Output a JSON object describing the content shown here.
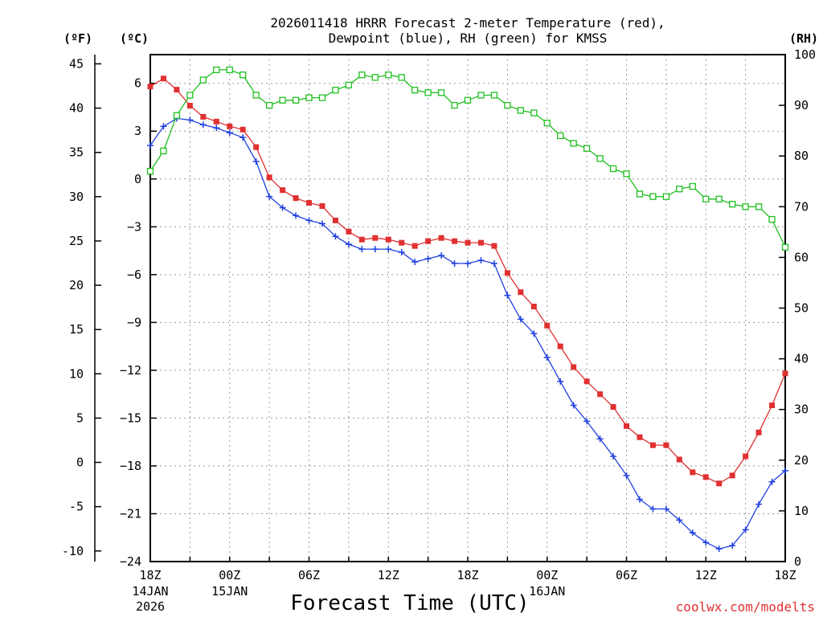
{
  "chart_data": {
    "type": "line",
    "title_line1": "2026011418 HRRR Forecast 2-meter Temperature (red),",
    "title_line2": "Dewpoint (blue), RH (green) for KMSS",
    "xlabel": "Forecast Time (UTC)",
    "credit": "coolwx.com/modelts",
    "unit_f": "(ºF)",
    "unit_c": "(ºC)",
    "unit_rh": "(RH)",
    "hours": 48,
    "y_c_range": [
      -24,
      7.8
    ],
    "y_rh_range": [
      0,
      100
    ],
    "fahrenheit_ticks": [
      "45",
      "40",
      "35",
      "30",
      "25",
      "20",
      "15",
      "10",
      "5",
      "0",
      "-5",
      "-10"
    ],
    "fahrenheit_values": [
      45,
      40,
      35,
      30,
      25,
      20,
      15,
      10,
      5,
      0,
      -5,
      -10
    ],
    "celsius_ticks": [
      "6",
      "3",
      "0",
      "−3",
      "−6",
      "−9",
      "−12",
      "−15",
      "−18",
      "−21",
      "−24"
    ],
    "celsius_values": [
      6,
      3,
      0,
      -3,
      -6,
      -9,
      -12,
      -15,
      -18,
      -21,
      -24
    ],
    "rh_ticks": [
      "100",
      "90",
      "80",
      "70",
      "60",
      "50",
      "40",
      "30",
      "20",
      "10",
      "0"
    ],
    "rh_values": [
      100,
      90,
      80,
      70,
      60,
      50,
      40,
      30,
      20,
      10,
      0
    ],
    "x_ticks": [
      {
        "hour": 0,
        "label": "18Z",
        "sub1": "14JAN",
        "sub2": "2026"
      },
      {
        "hour": 6,
        "label": "00Z",
        "sub1": "15JAN",
        "sub2": ""
      },
      {
        "hour": 12,
        "label": "06Z",
        "sub1": "",
        "sub2": ""
      },
      {
        "hour": 18,
        "label": "12Z",
        "sub1": "",
        "sub2": ""
      },
      {
        "hour": 24,
        "label": "18Z",
        "sub1": "",
        "sub2": ""
      },
      {
        "hour": 30,
        "label": "00Z",
        "sub1": "16JAN",
        "sub2": ""
      },
      {
        "hour": 36,
        "label": "06Z",
        "sub1": "",
        "sub2": ""
      },
      {
        "hour": 42,
        "label": "12Z",
        "sub1": "",
        "sub2": ""
      },
      {
        "hour": 48,
        "label": "18Z",
        "sub1": "",
        "sub2": ""
      }
    ],
    "series": [
      {
        "name": "2-meter Temperature",
        "color": "#e03030",
        "marker": "filled-square",
        "axis": "celsius",
        "values": [
          5.8,
          6.3,
          5.6,
          4.6,
          3.9,
          3.6,
          3.3,
          3.1,
          2.0,
          0.1,
          -0.7,
          -1.2,
          -1.5,
          -1.7,
          -2.6,
          -3.3,
          -3.8,
          -3.7,
          -3.8,
          -4.0,
          -4.2,
          -3.9,
          -3.7,
          -3.9,
          -4.0,
          -4.0,
          -4.2,
          -5.9,
          -7.1,
          -8.0,
          -9.2,
          -10.5,
          -11.8,
          -12.7,
          -13.5,
          -14.3,
          -15.5,
          -16.2,
          -16.7,
          -16.7,
          -17.6,
          -18.4,
          -18.7,
          -19.1,
          -18.6,
          -17.4,
          -15.9,
          -14.2,
          -12.2
        ]
      },
      {
        "name": "Dewpoint",
        "color": "#2040e0",
        "marker": "plus",
        "axis": "celsius",
        "values": [
          2.1,
          3.3,
          3.8,
          3.7,
          3.4,
          3.2,
          2.9,
          2.6,
          1.1,
          -1.1,
          -1.8,
          -2.3,
          -2.6,
          -2.8,
          -3.6,
          -4.1,
          -4.4,
          -4.4,
          -4.4,
          -4.6,
          -5.2,
          -5.0,
          -4.8,
          -5.3,
          -5.3,
          -5.1,
          -5.3,
          -7.3,
          -8.8,
          -9.7,
          -11.2,
          -12.7,
          -14.2,
          -15.2,
          -16.3,
          -17.4,
          -18.6,
          -20.1,
          -20.7,
          -20.7,
          -21.4,
          -22.2,
          -22.8,
          -23.2,
          -23.0,
          -22.0,
          -20.4,
          -19.0,
          -18.3
        ]
      },
      {
        "name": "RH",
        "color": "#20c020",
        "marker": "open-square",
        "axis": "rh",
        "values": [
          77,
          81,
          88,
          92,
          95,
          97,
          97,
          96,
          92,
          90,
          91,
          91,
          91.5,
          91.5,
          93,
          94,
          96,
          95.5,
          96,
          95.5,
          93,
          92.5,
          92.5,
          90,
          91,
          92,
          92,
          90,
          89,
          88.5,
          86.5,
          84,
          82.5,
          81.5,
          79.5,
          77.5,
          76.5,
          72.5,
          72,
          72,
          73.5,
          74,
          71.5,
          71.5,
          70.5,
          70,
          70,
          67.5,
          62
        ]
      }
    ]
  }
}
